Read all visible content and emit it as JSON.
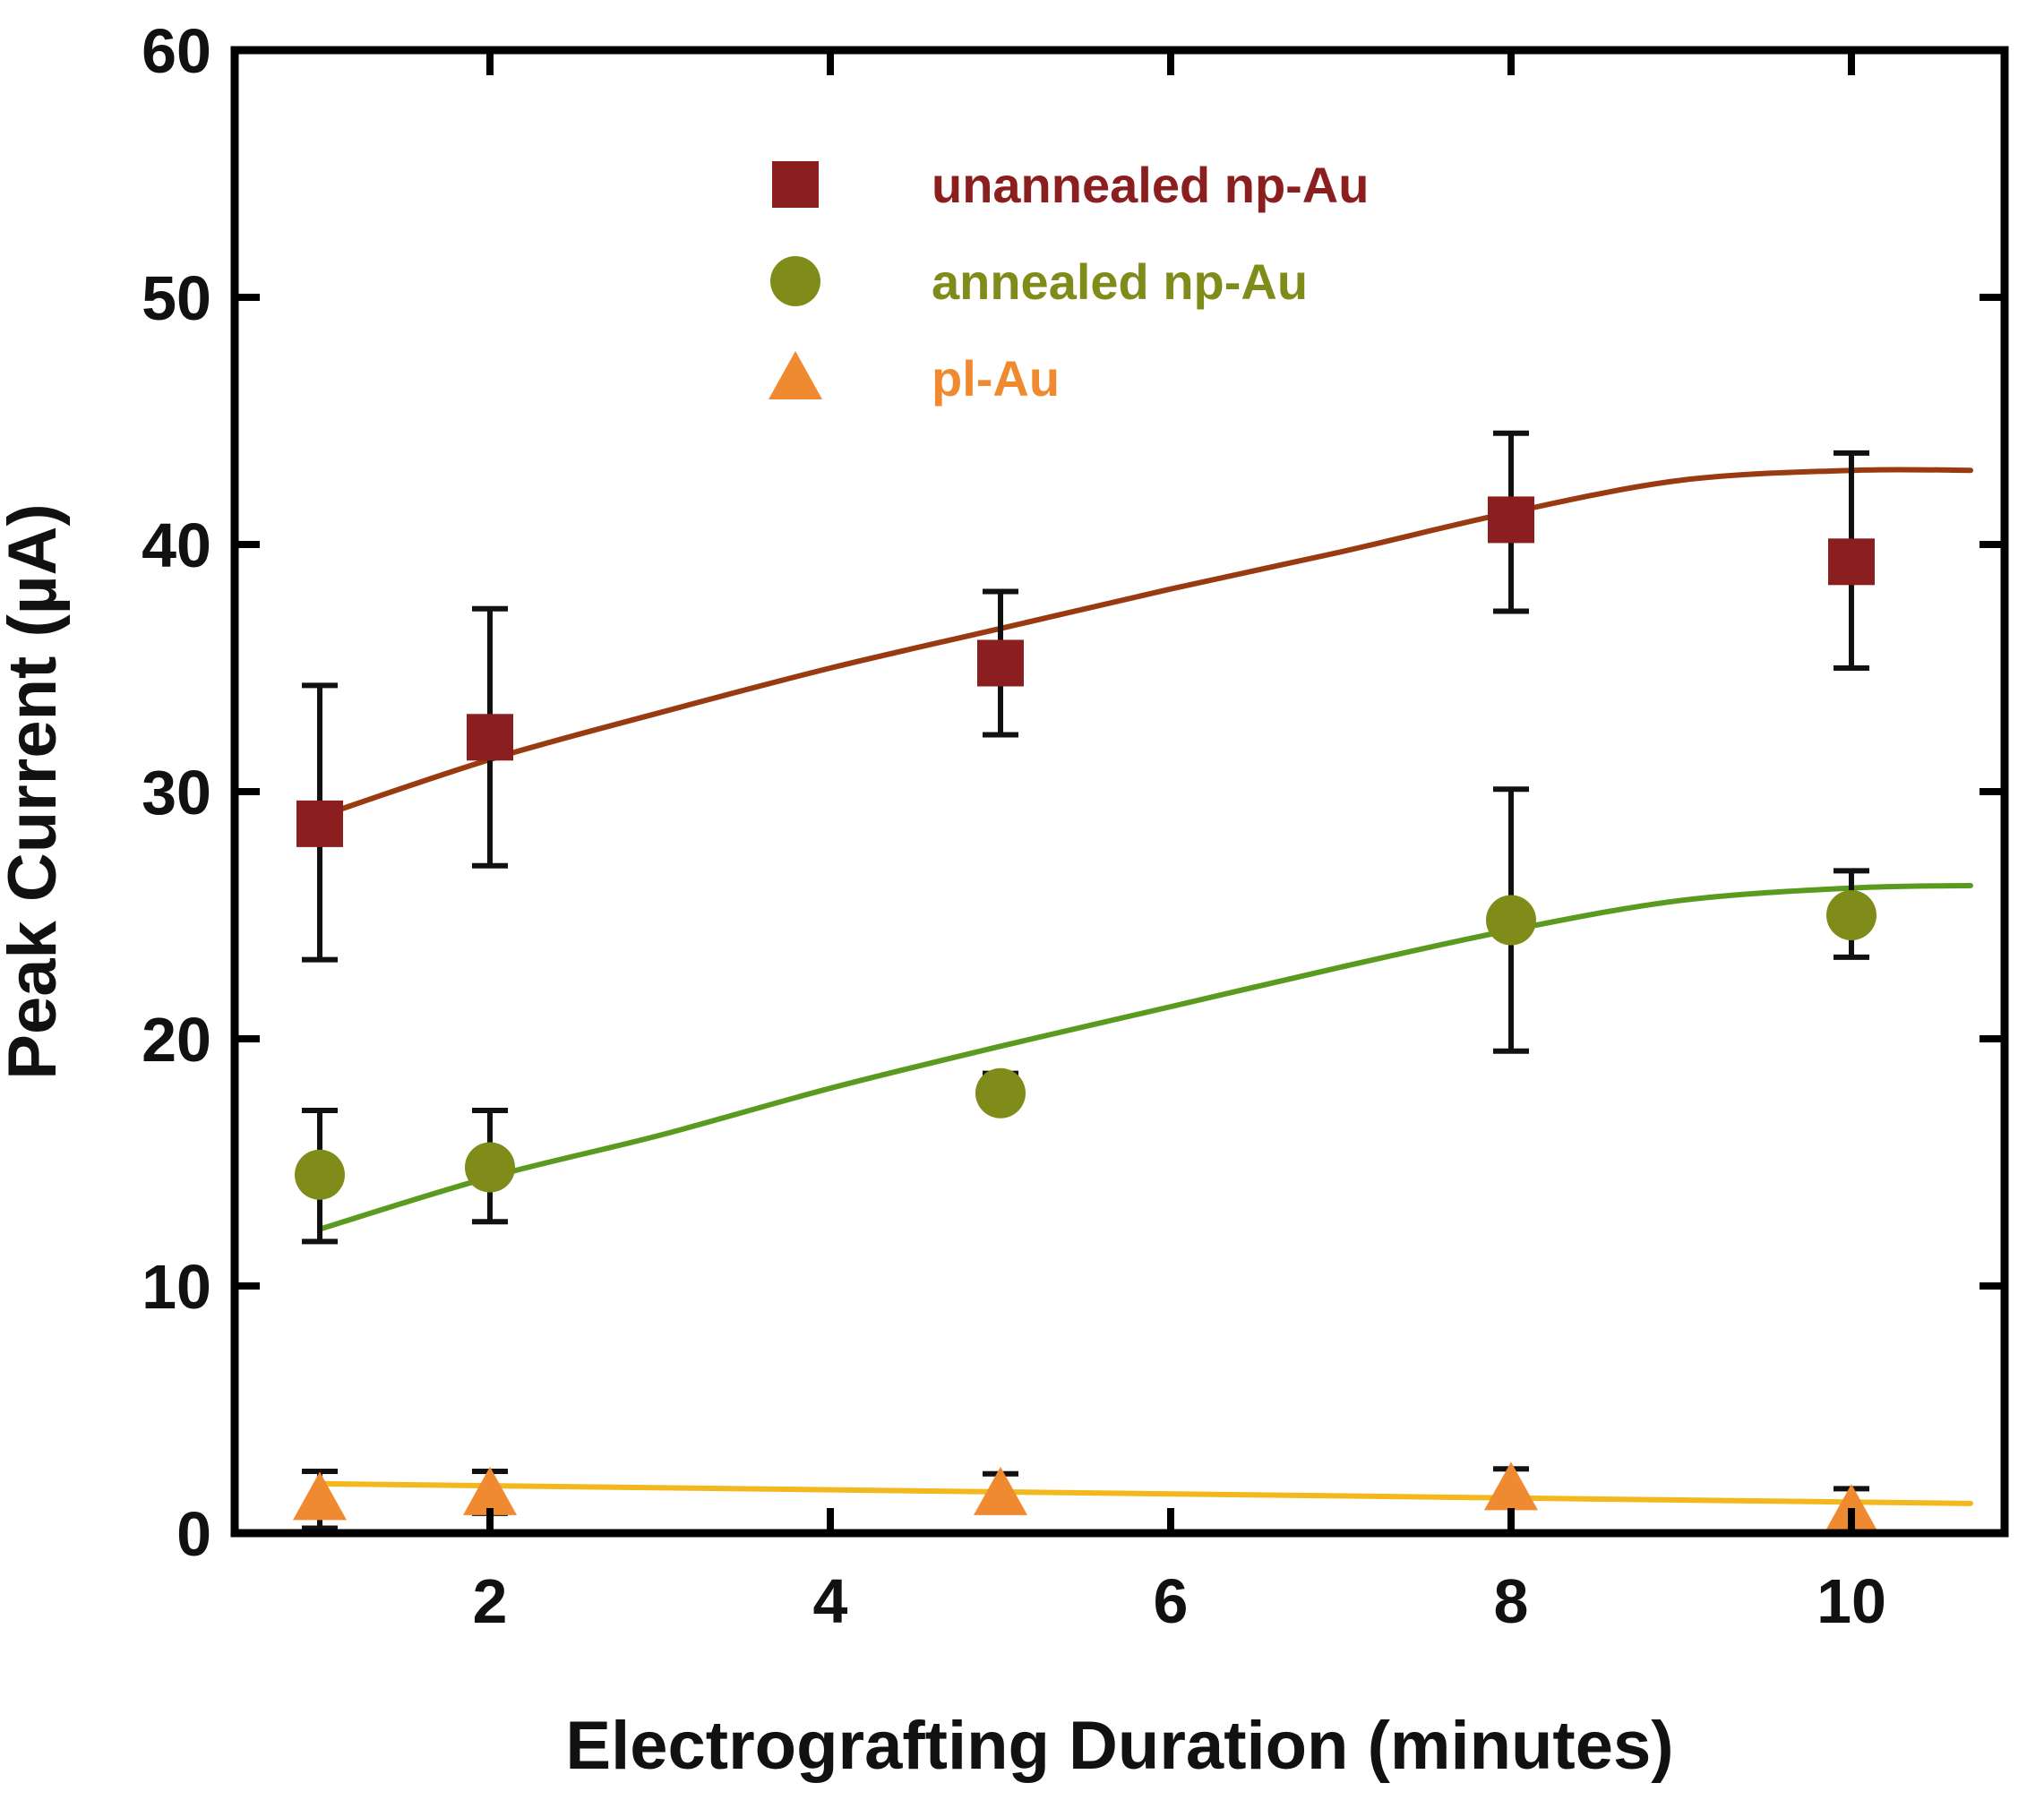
{
  "chart_data": {
    "type": "scatter",
    "title": "",
    "xlabel": "Electrografting Duration (minutes)",
    "ylabel": "Peak Current (µA)",
    "xlim": [
      0.5,
      10.9
    ],
    "ylim": [
      0,
      60
    ],
    "xticks": [
      2,
      4,
      6,
      8,
      10
    ],
    "yticks": [
      0,
      10,
      20,
      30,
      40,
      50,
      60
    ],
    "grid": false,
    "legend_position": "top-center",
    "series": [
      {
        "name": "unannealed np-Au",
        "marker": "square",
        "color": "#8b1e1e",
        "fit_color": "#9a3a10",
        "x": [
          1,
          2,
          5,
          8,
          10
        ],
        "y": [
          28.7,
          32.2,
          35.2,
          41.0,
          39.3
        ],
        "err_low": [
          23.2,
          27.0,
          32.3,
          37.3,
          35.0
        ],
        "err_high": [
          34.3,
          37.4,
          38.1,
          44.5,
          43.7
        ],
        "fit_x": [
          1,
          2,
          3,
          4,
          5,
          6,
          7,
          8,
          9,
          10,
          10.7
        ],
        "fit_y": [
          29.0,
          31.3,
          33.2,
          35.0,
          36.6,
          38.2,
          39.7,
          41.3,
          42.6,
          43.0,
          43.0
        ]
      },
      {
        "name": "annealed np-Au",
        "marker": "circle",
        "color": "#7f8c1a",
        "fit_color": "#5a9a1e",
        "x": [
          1,
          2,
          5,
          8,
          10
        ],
        "y": [
          14.5,
          14.8,
          17.8,
          24.8,
          25.0
        ],
        "err_low": [
          11.8,
          12.6,
          17.3,
          19.5,
          23.3
        ],
        "err_high": [
          17.1,
          17.1,
          18.6,
          30.1,
          26.8
        ],
        "fit_x": [
          1,
          2,
          3,
          4,
          5,
          6,
          7,
          8,
          9,
          10,
          10.7
        ],
        "fit_y": [
          12.3,
          14.4,
          16.1,
          18.0,
          19.7,
          21.3,
          22.9,
          24.4,
          25.6,
          26.1,
          26.2
        ]
      },
      {
        "name": "pl-Au",
        "marker": "triangle",
        "color": "#f08a30",
        "fit_color": "#f2b81e",
        "x": [
          1,
          2,
          5,
          8,
          10
        ],
        "y": [
          1.4,
          1.6,
          1.6,
          1.8,
          0.9
        ],
        "err_low": [
          0.2,
          0.8,
          0.9,
          1.2,
          0.2
        ],
        "err_high": [
          2.5,
          2.5,
          2.4,
          2.6,
          1.8
        ],
        "fit_x": [
          1,
          10.7
        ],
        "fit_y": [
          2.0,
          1.2
        ]
      }
    ]
  }
}
